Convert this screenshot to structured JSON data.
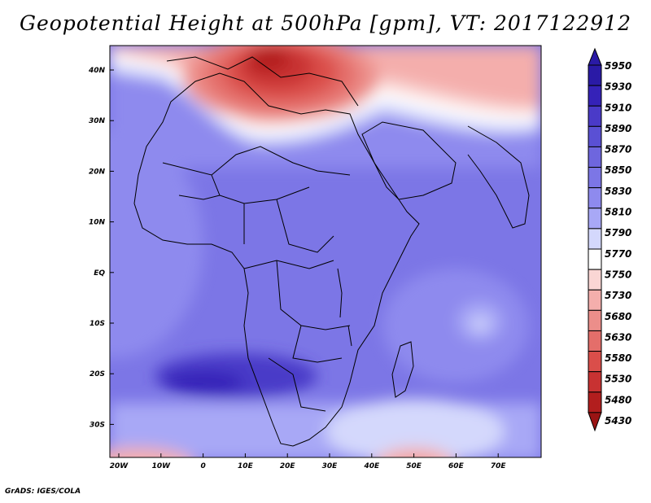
{
  "title": "Geopotential Height at 500hPa [gpm], VT: 2017122912",
  "credit": "GrADS: IGES/COLA",
  "map": {
    "lon_labels": [
      "20W",
      "10W",
      "0",
      "10E",
      "20E",
      "30E",
      "40E",
      "50E",
      "60E",
      "70E"
    ],
    "lat_labels": [
      "40N",
      "30N",
      "20N",
      "10N",
      "EQ",
      "10S",
      "20S",
      "30S"
    ]
  },
  "colorbar": {
    "labels": [
      "5950",
      "5930",
      "5910",
      "5890",
      "5870",
      "5850",
      "5830",
      "5810",
      "5790",
      "5770",
      "5750",
      "5730",
      "5680",
      "5630",
      "5580",
      "5530",
      "5480",
      "5430"
    ],
    "colors": [
      "#2a1aa6",
      "#3522b8",
      "#4a3ac8",
      "#5a50d4",
      "#6e66de",
      "#7c76e6",
      "#8e8aee",
      "#a8a8f6",
      "#d4d8fc",
      "#ffffff",
      "#fad6d4",
      "#f4aeac",
      "#ec8e8a",
      "#e46e6a",
      "#da4e4a",
      "#c83232",
      "#b21e1e",
      "#9a1414"
    ]
  }
}
